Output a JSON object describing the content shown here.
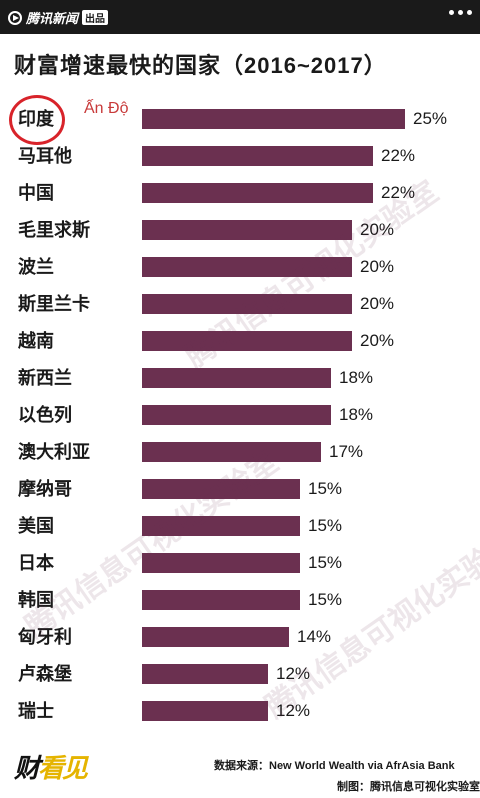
{
  "header": {
    "brand": "腾讯新闻",
    "brand_tag": "出品"
  },
  "watermark_text": "腾讯信息可视化实验室",
  "annotation": {
    "circled": "印度",
    "text": "Ấn Độ",
    "color": "#d8232a"
  },
  "footer": {
    "logo_part1": "财",
    "logo_part2": "看见",
    "source": "数据来源：New World Wealth via AfrAsia Bank",
    "credit": "制图：腾讯信息可视化实验室"
  },
  "chart_data": {
    "type": "bar",
    "orientation": "horizontal",
    "title": "财富增速最快的国家（2016~2017）",
    "bar_color": "#6b3050",
    "categories": [
      "印度",
      "马耳他",
      "中国",
      "毛里求斯",
      "波兰",
      "斯里兰卡",
      "越南",
      "新西兰",
      "以色列",
      "澳大利亚",
      "摩纳哥",
      "美国",
      "日本",
      "韩国",
      "匈牙利",
      "卢森堡",
      "瑞士"
    ],
    "values": [
      25,
      22,
      22,
      20,
      20,
      20,
      20,
      18,
      18,
      17,
      15,
      15,
      15,
      15,
      14,
      12,
      12
    ],
    "value_labels": [
      "25%",
      "22%",
      "22%",
      "20%",
      "20%",
      "20%",
      "20%",
      "18%",
      "18%",
      "17%",
      "15%",
      "15%",
      "15%",
      "15%",
      "14%",
      "12%",
      "12%"
    ],
    "unit": "%",
    "xlim": [
      0,
      25
    ],
    "grid": false,
    "legend": "none"
  }
}
